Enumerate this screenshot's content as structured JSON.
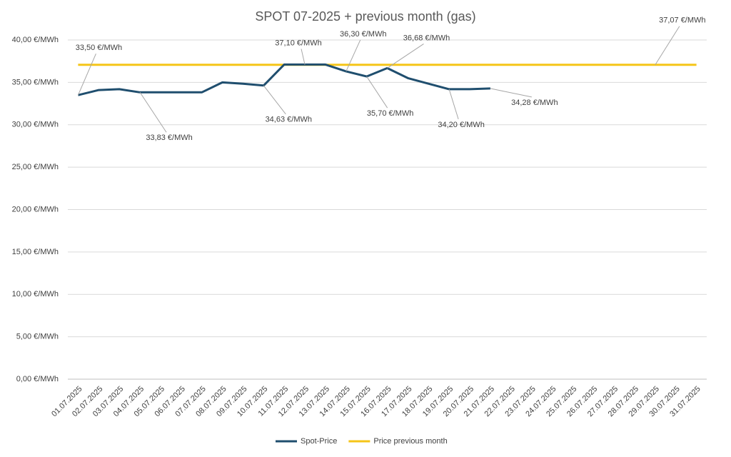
{
  "chart_data": {
    "type": "line",
    "title": "SPOT 07-2025 + previous month (gas)",
    "categories": [
      "01.07.2025",
      "02.07.2025",
      "03.07.2025",
      "04.07.2025",
      "05.07.2025",
      "06.07.2025",
      "07.07.2025",
      "08.07.2025",
      "09.07.2025",
      "10.07.2025",
      "11.07.2025",
      "12.07.2025",
      "13.07.2025",
      "14.07.2025",
      "15.07.2025",
      "16.07.2025",
      "17.07.2025",
      "18.07.2025",
      "19.07.2025",
      "20.07.2025",
      "21.07.2025",
      "22.07.2025",
      "23.07.2025",
      "24.07.2025",
      "25.07.2025",
      "26.07.2025",
      "27.07.2025",
      "28.07.2025",
      "29.07.2025",
      "30.07.2025",
      "31.07.2025"
    ],
    "series": [
      {
        "name": "Spot-Price",
        "color": "#1f4e6e",
        "values": [
          33.5,
          34.1,
          34.2,
          33.83,
          33.83,
          33.83,
          33.83,
          35.0,
          34.85,
          34.63,
          37.1,
          37.1,
          37.1,
          36.3,
          35.7,
          36.68,
          35.5,
          34.85,
          34.2,
          34.2,
          34.28,
          null,
          null,
          null,
          null,
          null,
          null,
          null,
          null,
          null,
          null
        ],
        "value_labels": [
          "33,50 €/MWh",
          null,
          null,
          "33,83 €/MWh",
          null,
          null,
          null,
          null,
          null,
          "34,63 €/MWh",
          null,
          "37,10 €/MWh",
          null,
          "36,30 €/MWh",
          "35,70 €/MWh",
          "36,68 €/MWh",
          null,
          null,
          "34,20 €/MWh",
          null,
          "34,28 €/MWh",
          null,
          null,
          null,
          null,
          null,
          null,
          null,
          null,
          null,
          null
        ]
      },
      {
        "name": "Price previous month",
        "color": "#f5c518",
        "values": [
          37.07,
          37.07,
          37.07,
          37.07,
          37.07,
          37.07,
          37.07,
          37.07,
          37.07,
          37.07,
          37.07,
          37.07,
          37.07,
          37.07,
          37.07,
          37.07,
          37.07,
          37.07,
          37.07,
          37.07,
          37.07,
          37.07,
          37.07,
          37.07,
          37.07,
          37.07,
          37.07,
          37.07,
          37.07,
          37.07,
          37.07
        ],
        "value_labels": [
          null,
          null,
          null,
          null,
          null,
          null,
          null,
          null,
          null,
          null,
          null,
          null,
          null,
          null,
          null,
          null,
          null,
          null,
          null,
          null,
          null,
          null,
          null,
          null,
          null,
          null,
          null,
          null,
          "37,07 €/MWh",
          null,
          null
        ]
      }
    ],
    "ylim": [
      0,
      40
    ],
    "yticks": [
      {
        "value": 0,
        "label": "0,00 €/MWh"
      },
      {
        "value": 5,
        "label": "5,00 €/MWh"
      },
      {
        "value": 10,
        "label": "10,00 €/MWh"
      },
      {
        "value": 15,
        "label": "15,00 €/MWh"
      },
      {
        "value": 20,
        "label": "20,00 €/MWh"
      },
      {
        "value": 25,
        "label": "25,00 €/MWh"
      },
      {
        "value": 30,
        "label": "30,00 €/MWh"
      },
      {
        "value": 35,
        "label": "35,00 €/MWh"
      },
      {
        "value": 40,
        "label": "40,00 €/MWh"
      }
    ],
    "grid": true,
    "legend": "bottom"
  }
}
